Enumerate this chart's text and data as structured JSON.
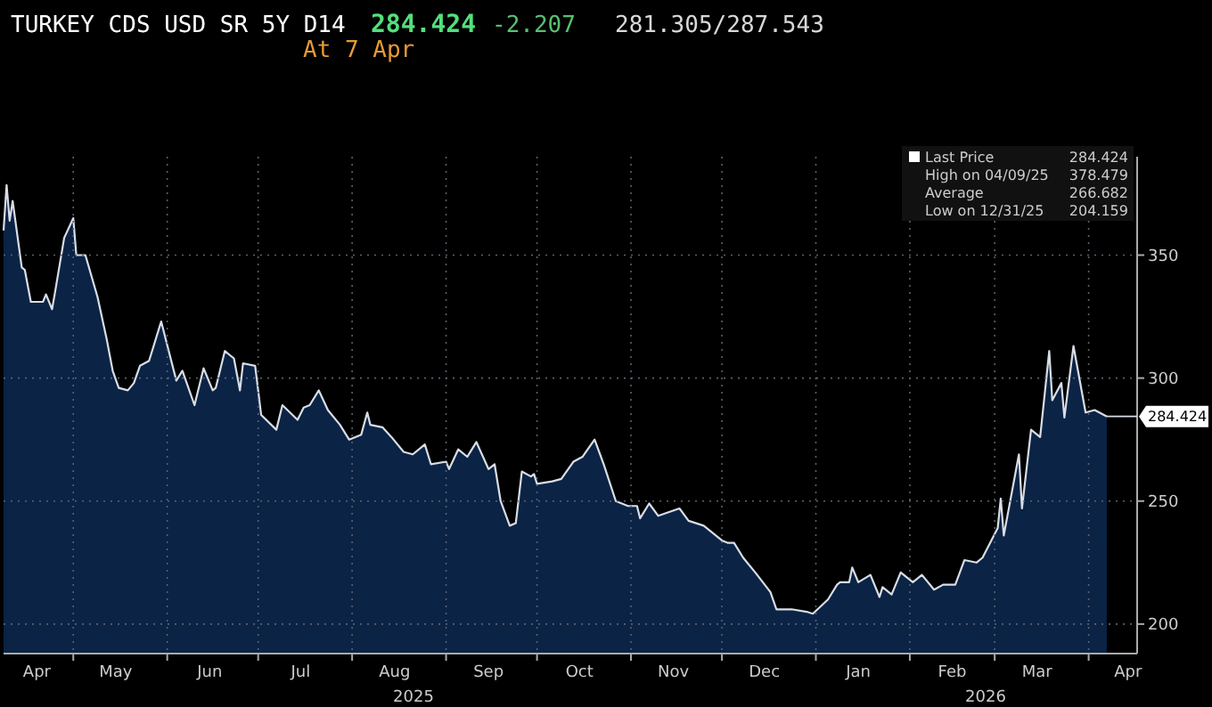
{
  "chart_data": {
    "type": "area",
    "title": "TURKEY CDS USD SR 5Y D14",
    "annotations": [
      "284.424",
      "-2.207",
      "281.305/287.543",
      "At 7 Apr",
      "Last Price",
      "284.424",
      "High on 04/09/25",
      "378.479",
      "Average",
      "266.682",
      "Low on 12/31/25",
      "204.159",
      {
        "text": "284.424",
        "x": "2026-04-07",
        "y": 284.424
      },
      "2025",
      "2026"
    ],
    "x": [
      "2025-04-08",
      "2025-04-09",
      "2025-04-10",
      "2025-04-11",
      "2025-04-14",
      "2025-04-15",
      "2025-04-17",
      "2025-04-21",
      "2025-04-22",
      "2025-04-24",
      "2025-04-25",
      "2025-04-28",
      "2025-05-01",
      "2025-05-02",
      "2025-05-05",
      "2025-05-09",
      "2025-05-12",
      "2025-05-14",
      "2025-05-16",
      "2025-05-19",
      "2025-05-21",
      "2025-05-23",
      "2025-05-26",
      "2025-05-30",
      "2025-06-04",
      "2025-06-06",
      "2025-06-10",
      "2025-06-13",
      "2025-06-16",
      "2025-06-17",
      "2025-06-20",
      "2025-06-23",
      "2025-06-25",
      "2025-06-26",
      "2025-06-30",
      "2025-07-02",
      "2025-07-07",
      "2025-07-09",
      "2025-07-14",
      "2025-07-16",
      "2025-07-18",
      "2025-07-21",
      "2025-07-24",
      "2025-07-28",
      "2025-07-31",
      "2025-08-04",
      "2025-08-06",
      "2025-08-07",
      "2025-08-11",
      "2025-08-14",
      "2025-08-18",
      "2025-08-21",
      "2025-08-25",
      "2025-08-27",
      "2025-09-01",
      "2025-09-02",
      "2025-09-05",
      "2025-09-08",
      "2025-09-11",
      "2025-09-15",
      "2025-09-17",
      "2025-09-19",
      "2025-09-22",
      "2025-09-24",
      "2025-09-26",
      "2025-09-29",
      "2025-09-30",
      "2025-10-01",
      "2025-10-06",
      "2025-10-09",
      "2025-10-13",
      "2025-10-16",
      "2025-10-20",
      "2025-10-23",
      "2025-10-27",
      "2025-10-29",
      "2025-10-31",
      "2025-11-03",
      "2025-11-04",
      "2025-11-07",
      "2025-11-10",
      "2025-11-17",
      "2025-11-20",
      "2025-11-25",
      "2025-12-01",
      "2025-12-03",
      "2025-12-05",
      "2025-12-08",
      "2025-12-12",
      "2025-12-17",
      "2025-12-19",
      "2025-12-24",
      "2025-12-29",
      "2025-12-31",
      "2026-01-05",
      "2026-01-08",
      "2026-01-09",
      "2026-01-12",
      "2026-01-13",
      "2026-01-15",
      "2026-01-19",
      "2026-01-22",
      "2026-01-23",
      "2026-01-26",
      "2026-01-29",
      "2026-02-02",
      "2026-02-05",
      "2026-02-09",
      "2026-02-12",
      "2026-02-16",
      "2026-02-19",
      "2026-02-23",
      "2026-02-25",
      "2026-03-02",
      "2026-03-03",
      "2026-03-04",
      "2026-03-09",
      "2026-03-10",
      "2026-03-13",
      "2026-03-16",
      "2026-03-19",
      "2026-03-20",
      "2026-03-23",
      "2026-03-24",
      "2026-03-27",
      "2026-03-31",
      "2026-04-03",
      "2026-04-07"
    ],
    "series": [
      {
        "color": "#0b2345",
        "values": [
          360,
          378.5,
          364,
          372,
          345,
          344,
          331,
          331,
          334,
          328,
          335,
          357,
          365,
          350,
          350,
          333,
          316,
          303,
          296,
          295,
          298,
          305,
          307,
          323,
          299,
          303,
          289,
          304,
          295,
          296,
          311,
          308,
          295,
          306,
          305,
          285,
          279,
          289,
          283,
          288,
          289,
          295,
          287,
          281,
          275,
          277,
          286,
          281,
          280,
          276,
          270,
          269,
          273,
          265,
          266,
          263,
          271,
          268,
          274,
          263,
          265,
          250,
          240,
          241,
          262,
          260,
          261,
          257,
          258,
          259,
          266,
          268,
          275,
          265,
          250,
          249,
          248,
          248,
          243,
          249,
          244,
          247,
          242,
          240,
          234,
          233,
          233,
          227,
          221,
          213,
          206,
          206,
          205,
          204.2,
          210,
          216,
          217,
          217,
          223,
          217,
          220,
          211,
          215,
          212,
          221,
          217,
          220,
          214,
          216,
          216,
          226,
          225,
          227,
          239,
          251,
          236,
          269,
          247,
          279,
          276,
          311,
          291,
          298,
          284,
          313,
          286,
          287,
          284.4
        ]
      }
    ],
    "xlim": [
      "2025-04-08",
      "2026-04-17"
    ],
    "xticks": [
      {
        "value": "2025-04-19",
        "label": "Apr"
      },
      {
        "value": "2025-05-01",
        "label": null
      },
      {
        "value": "2025-05-15",
        "label": "May"
      },
      {
        "value": "2025-06-01",
        "label": null
      },
      {
        "value": "2025-06-15",
        "label": "Jun"
      },
      {
        "value": "2025-07-01",
        "label": null
      },
      {
        "value": "2025-07-15",
        "label": "Jul"
      },
      {
        "value": "2025-08-01",
        "label": null
      },
      {
        "value": "2025-08-15",
        "label": "Aug"
      },
      {
        "value": "2025-09-01",
        "label": null
      },
      {
        "value": "2025-09-15",
        "label": "Sep"
      },
      {
        "value": "2025-10-01",
        "label": null
      },
      {
        "value": "2025-10-15",
        "label": "Oct"
      },
      {
        "value": "2025-11-01",
        "label": null
      },
      {
        "value": "2025-11-15",
        "label": "Nov"
      },
      {
        "value": "2025-12-01",
        "label": null
      },
      {
        "value": "2025-12-15",
        "label": "Dec"
      },
      {
        "value": "2026-01-01",
        "label": null
      },
      {
        "value": "2026-01-15",
        "label": "Jan"
      },
      {
        "value": "2026-02-01",
        "label": null
      },
      {
        "value": "2026-02-15",
        "label": "Feb"
      },
      {
        "value": "2026-03-01",
        "label": null
      },
      {
        "value": "2026-03-15",
        "label": "Mar"
      },
      {
        "value": "2026-04-01",
        "label": null
      },
      {
        "value": "2026-04-14",
        "label": "Apr"
      }
    ],
    "ylim": [
      188,
      390
    ],
    "yticks": [
      200,
      250,
      300,
      350
    ],
    "grid": true
  }
}
